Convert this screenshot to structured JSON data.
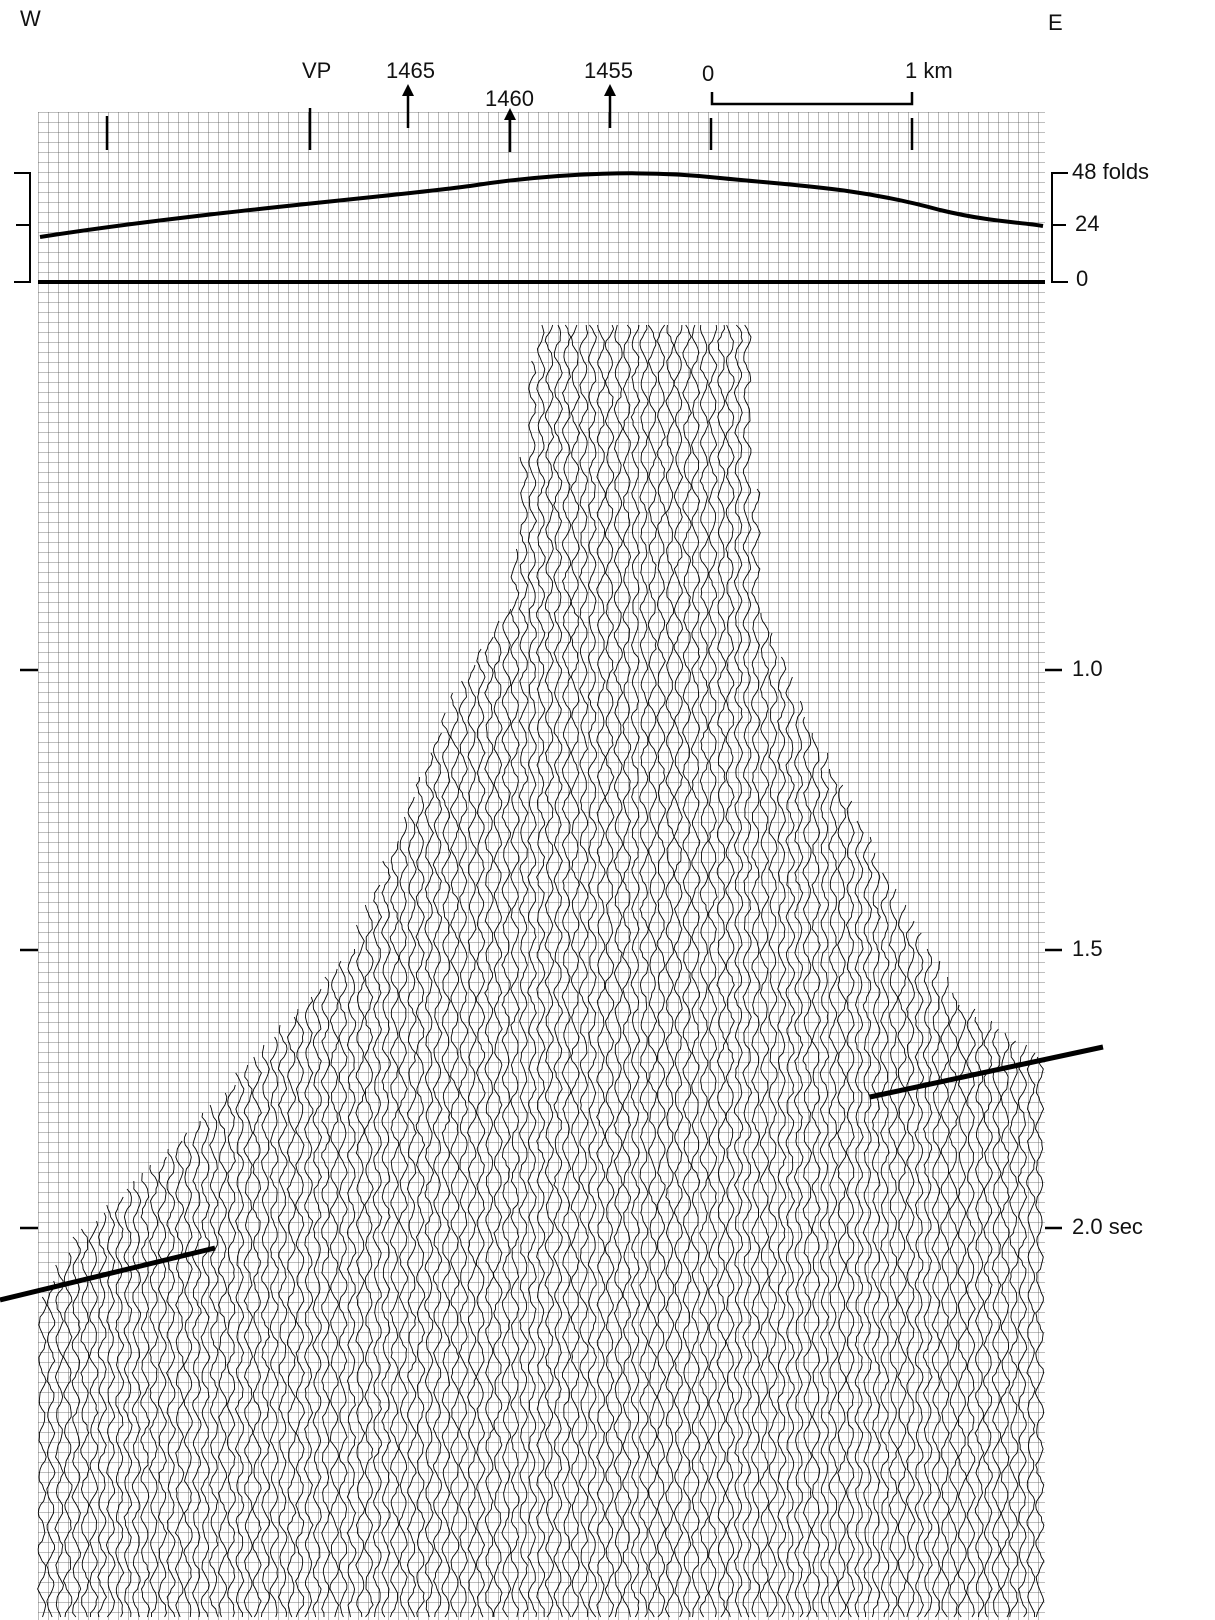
{
  "header": {
    "west": "W",
    "east": "E",
    "vp_label": "VP",
    "vp_marks": [
      "1465",
      "1460",
      "1455"
    ],
    "scale": {
      "start": "0",
      "end": "1 km"
    }
  },
  "fold_axis": {
    "labels": [
      "48 folds",
      "24",
      "0"
    ]
  },
  "time_axis": {
    "labels": [
      "1.0",
      "1.5",
      "2.0 sec"
    ]
  }
}
